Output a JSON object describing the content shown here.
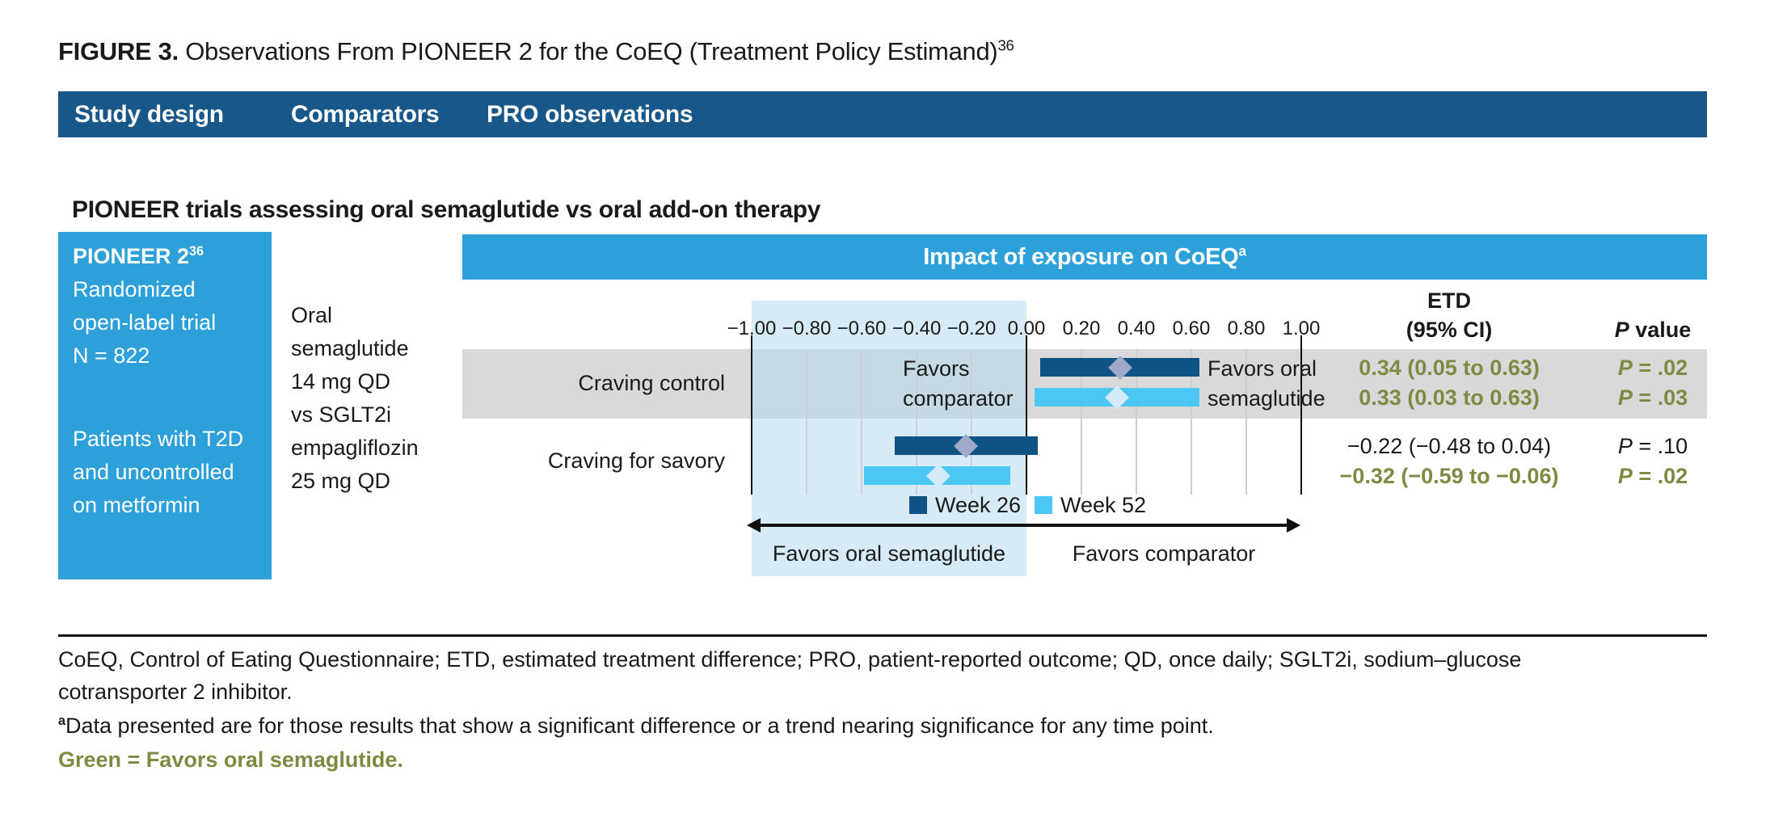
{
  "figure": {
    "label": "FIGURE 3.",
    "title": " Observations From PIONEER 2 for the CoEQ (Treatment Policy Estimand)",
    "reference": "36"
  },
  "tabs": [
    {
      "label": "Study design"
    },
    {
      "label": "Comparators"
    },
    {
      "label": "PRO observations"
    }
  ],
  "section_heading": "PIONEER trials assessing oral semaglutide vs oral add-on therapy",
  "study_panel": {
    "trial": "PIONEER 2",
    "reference": "36",
    "design_lines": [
      "Randomized",
      "open-label trial",
      "N = 822"
    ],
    "population_lines": [
      "Patients with T2D",
      "and uncontrolled",
      "on metformin"
    ]
  },
  "comparators_panel": {
    "lines": [
      "Oral",
      "semaglutide",
      "14 mg QD",
      "vs SGLT2i",
      "empagliflozin",
      "25 mg QD"
    ]
  },
  "chart_data": {
    "type": "bar",
    "title": "Impact of exposure on CoEQ",
    "title_sup": "a",
    "xlim": [
      -1.0,
      1.0
    ],
    "axis_ticks": [
      -1.0,
      -0.8,
      -0.6,
      -0.4,
      -0.2,
      0.0,
      0.2,
      0.4,
      0.6,
      0.8,
      1.0
    ],
    "tick_labels": [
      "−1.00",
      "−0.80",
      "−0.60",
      "−0.40",
      "−0.20",
      "0.00",
      "0.20",
      "0.40",
      "0.60",
      "0.80",
      "1.00"
    ],
    "grid": true,
    "columns": {
      "etd_line1": "ETD",
      "etd_line2": "(95% CI)",
      "p": "P value"
    },
    "rows": [
      {
        "outcome": "Craving control",
        "series": [
          {
            "name": "Week 26",
            "color": "week26",
            "estimate": 0.34,
            "ci_low": 0.05,
            "ci_high": 0.63,
            "etd": "0.34 (0.05 to 0.63)",
            "p": "P = .02",
            "favors_oral_semaglutide": true
          },
          {
            "name": "Week 52",
            "color": "week52",
            "estimate": 0.33,
            "ci_low": 0.03,
            "ci_high": 0.63,
            "etd": "0.33 (0.03 to 0.63)",
            "p": "P = .03",
            "favors_oral_semaglutide": true
          }
        ]
      },
      {
        "outcome": "Craving for savory",
        "series": [
          {
            "name": "Week 26",
            "color": "week26",
            "estimate": -0.22,
            "ci_low": -0.48,
            "ci_high": 0.04,
            "etd": "−0.22 (−0.48 to 0.04)",
            "p": "P = .10",
            "favors_oral_semaglutide": false
          },
          {
            "name": "Week 52",
            "color": "week52",
            "estimate": -0.32,
            "ci_low": -0.59,
            "ci_high": -0.06,
            "etd": "−0.32 (−0.59 to −0.06)",
            "p": "P = .02",
            "favors_oral_semaglutide": true
          }
        ]
      }
    ],
    "legend": [
      {
        "label": "Week 26",
        "color": "week26"
      },
      {
        "label": "Week 52",
        "color": "week52"
      }
    ],
    "annotations": {
      "favors_left_line1": "Favors",
      "favors_left_line2": "comparator",
      "favors_right_line1": "Favors oral",
      "favors_right_line2": "semaglutide",
      "arrow_left_label": "Favors oral semaglutide",
      "arrow_right_label": "Favors comparator"
    }
  },
  "footer": {
    "abbreviations_line1": "CoEQ, Control of Eating Questionnaire; ETD, estimated treatment difference; PRO, patient-reported outcome; QD, once daily; SGLT2i, sodium–glucose",
    "abbreviations_line2": "cotransporter 2 inhibitor.",
    "footnote_marker": "a",
    "footnote": "Data presented are for those results that show a significant difference or a trend nearing significance for any time point.",
    "color_key_note": "Green = Favors oral semaglutide."
  },
  "colors": {
    "header_bar": "#17578a",
    "accent_blue": "#2da0d9",
    "week26": "#0e5383",
    "week52": "#4cc7f3",
    "diamond_week26": "#9fa9c9",
    "diamond_week52": "#d5eaf9",
    "shaded_region": "rgba(183,219,238,0.55)",
    "gray_band": "#d9d9d9",
    "gridline": "#c9cfd3",
    "favors_green": "#7c8b41",
    "text_black": "#1a1a1a"
  }
}
